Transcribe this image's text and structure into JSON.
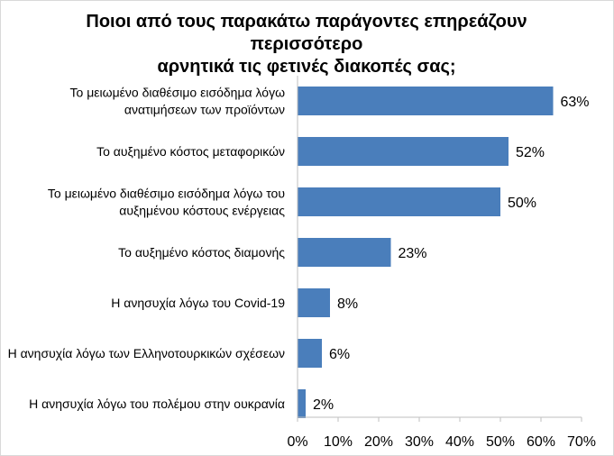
{
  "chart_data": {
    "type": "bar",
    "orientation": "horizontal",
    "title_lines": [
      "Ποιοι από τους παρακάτω παράγοντες επηρεάζουν περισσότερο",
      "αρνητικά τις φετινές διακοπές σας;"
    ],
    "categories": [
      [
        "Το μειωμένο διαθέσιμο εισόδημα λόγω",
        "ανατιμήσεων των προϊόντων"
      ],
      [
        "Το αυξημένο κόστος μεταφορικών"
      ],
      [
        "Το μειωμένο διαθέσιμο εισόδημα λόγω του",
        "αυξημένου κόστους ενέργειας"
      ],
      [
        "Το αυξημένο κόστος διαμονής"
      ],
      [
        "Η ανησυχία λόγω του Covid-19"
      ],
      [
        "Η ανησυχία λόγω των Ελληνοτουρκικών σχέσεων"
      ],
      [
        "Η ανησυχία λόγω του πολέμου στην ουκρανία"
      ]
    ],
    "values": [
      63,
      52,
      50,
      23,
      8,
      6,
      2
    ],
    "data_labels": [
      "63%",
      "52%",
      "50%",
      "23%",
      "8%",
      "6%",
      "2%"
    ],
    "x_ticks": [
      0,
      10,
      20,
      30,
      40,
      50,
      60,
      70
    ],
    "x_tick_labels": [
      "0%",
      "10%",
      "20%",
      "30%",
      "40%",
      "50%",
      "60%",
      "70%"
    ],
    "xlim": [
      0,
      70
    ],
    "grid": false,
    "legend": "none",
    "colors": {
      "bar": "#4a7ebb",
      "axis": "#bfbfbf",
      "text": "#000000"
    }
  }
}
